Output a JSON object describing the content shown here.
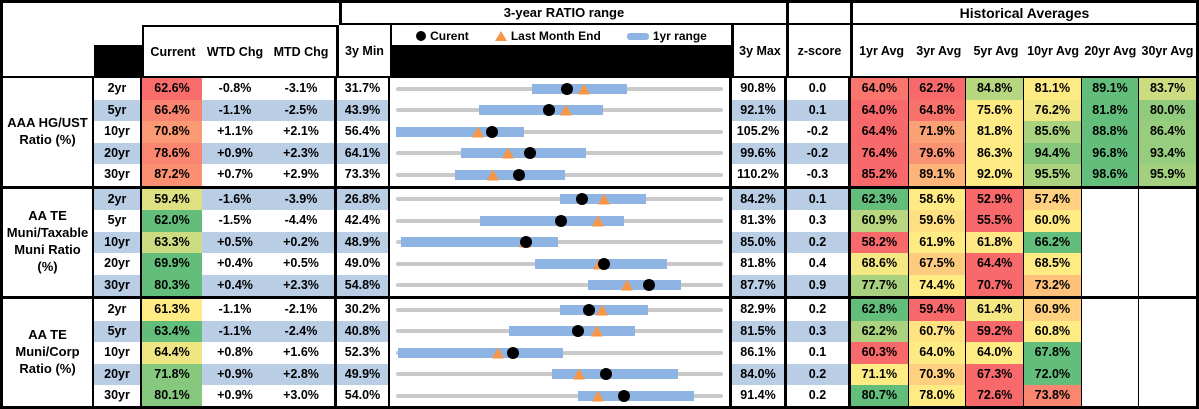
{
  "header": {
    "range_title": "3-year RATIO range",
    "hist_title": "Historical Averages",
    "col_current": "Current",
    "col_wtd": "WTD Chg",
    "col_mtd": "MTD Chg",
    "col_3ymin": "3y Min",
    "col_3ymax": "3y Max",
    "col_zscore": "z-score",
    "avg_cols": [
      "1yr Avg",
      "3yr Avg",
      "5yr Avg",
      "10yr Avg",
      "20yr Avg",
      "30yr Avg"
    ],
    "legend_current": "Curent",
    "legend_last_month": "Last Month End",
    "legend_range": "1yr range"
  },
  "colors": {
    "heat_min": "#F8696B",
    "heat_mid": "#FFEB84",
    "heat_max": "#63BE7B",
    "band_blue": "#B9CDE5",
    "track_gray": "#C9C9C9",
    "bar_blue": "#8EB4E3",
    "marker_orange": "#F79646",
    "marker_black": "#000000"
  },
  "chart_data": {
    "type": "table",
    "columns": [
      "Current",
      "WTD Chg",
      "MTD Chg",
      "3y Min",
      "3-year RATIO range",
      "3y Max",
      "z-score",
      "1yr Avg",
      "3yr Avg",
      "5yr Avg",
      "10yr Avg",
      "20yr Avg",
      "30yr Avg"
    ],
    "range_plot_legend": [
      "Curent",
      "Last Month End",
      "1yr range"
    ],
    "sections": [
      {
        "label_lines": [
          "AAA HG/UST",
          "Ratio (%)"
        ],
        "rows": [
          {
            "tenor": "2yr",
            "current": "62.6%",
            "wtd_chg": "-0.8%",
            "mtd_chg": "-3.1%",
            "min_3y": "31.7%",
            "max_3y": "90.8%",
            "z_score": "0.0",
            "avgs": [
              "64.0%",
              "62.2%",
              "84.8%",
              "81.1%",
              "89.1%",
              "83.7%"
            ],
            "range_plot": {
              "min": 31.7,
              "max": 90.8,
              "current": 62.6,
              "last_month_end": 65.7,
              "bar_1yr": [
                56.3,
                73.4
              ]
            }
          },
          {
            "tenor": "5yr",
            "current": "66.4%",
            "wtd_chg": "-1.1%",
            "mtd_chg": "-2.5%",
            "min_3y": "43.9%",
            "max_3y": "92.1%",
            "z_score": "0.1",
            "avgs": [
              "64.0%",
              "64.8%",
              "75.6%",
              "76.2%",
              "81.8%",
              "80.0%"
            ],
            "range_plot": {
              "min": 43.9,
              "max": 92.1,
              "current": 66.4,
              "last_month_end": 68.9,
              "bar_1yr": [
                56.1,
                74.4
              ]
            }
          },
          {
            "tenor": "10yr",
            "current": "70.8%",
            "wtd_chg": "+1.1%",
            "mtd_chg": "+2.1%",
            "min_3y": "56.4%",
            "max_3y": "105.2%",
            "z_score": "-0.2",
            "avgs": [
              "64.4%",
              "71.9%",
              "81.8%",
              "85.6%",
              "88.8%",
              "86.4%"
            ],
            "range_plot": {
              "min": 56.4,
              "max": 105.2,
              "current": 70.8,
              "last_month_end": 68.7,
              "bar_1yr": [
                56.4,
                75.5
              ]
            }
          },
          {
            "tenor": "20yr",
            "current": "78.6%",
            "wtd_chg": "+0.9%",
            "mtd_chg": "+2.3%",
            "min_3y": "64.1%",
            "max_3y": "99.6%",
            "z_score": "-0.2",
            "avgs": [
              "76.4%",
              "79.6%",
              "86.3%",
              "94.4%",
              "96.8%",
              "93.4%"
            ],
            "range_plot": {
              "min": 64.1,
              "max": 99.6,
              "current": 78.6,
              "last_month_end": 76.3,
              "bar_1yr": [
                71.2,
                84.7
              ]
            }
          },
          {
            "tenor": "30yr",
            "current": "87.2%",
            "wtd_chg": "+0.7%",
            "mtd_chg": "+2.9%",
            "min_3y": "73.3%",
            "max_3y": "110.2%",
            "z_score": "-0.3",
            "avgs": [
              "85.2%",
              "89.1%",
              "92.0%",
              "95.5%",
              "98.6%",
              "95.9%"
            ],
            "range_plot": {
              "min": 73.3,
              "max": 110.2,
              "current": 87.2,
              "last_month_end": 84.3,
              "bar_1yr": [
                80.0,
                92.4
              ]
            }
          }
        ]
      },
      {
        "label_lines": [
          "AA TE",
          "Muni/Taxable",
          "Muni Ratio",
          "(%)"
        ],
        "rows": [
          {
            "tenor": "2yr",
            "current": "59.4%",
            "wtd_chg": "-1.6%",
            "mtd_chg": "-3.9%",
            "min_3y": "26.8%",
            "max_3y": "84.2%",
            "z_score": "0.1",
            "avgs": [
              "62.3%",
              "58.6%",
              "52.9%",
              "57.4%",
              null,
              null
            ],
            "range_plot": {
              "min": 26.8,
              "max": 84.2,
              "current": 59.4,
              "last_month_end": 63.3,
              "bar_1yr": [
                55.5,
                70.6
              ]
            }
          },
          {
            "tenor": "5yr",
            "current": "62.0%",
            "wtd_chg": "-1.5%",
            "mtd_chg": "-4.4%",
            "min_3y": "42.4%",
            "max_3y": "81.3%",
            "z_score": "0.3",
            "avgs": [
              "60.9%",
              "59.6%",
              "55.5%",
              "60.0%",
              null,
              null
            ],
            "range_plot": {
              "min": 42.4,
              "max": 81.3,
              "current": 62.0,
              "last_month_end": 66.4,
              "bar_1yr": [
                52.4,
                69.5
              ]
            }
          },
          {
            "tenor": "10yr",
            "current": "63.3%",
            "wtd_chg": "+0.5%",
            "mtd_chg": "+0.2%",
            "min_3y": "48.9%",
            "max_3y": "85.0%",
            "z_score": "0.2",
            "avgs": [
              "58.2%",
              "61.9%",
              "61.8%",
              "66.2%",
              null,
              null
            ],
            "range_plot": {
              "min": 48.9,
              "max": 85.0,
              "current": 63.3,
              "last_month_end": 63.1,
              "bar_1yr": [
                49.4,
                66.8
              ]
            }
          },
          {
            "tenor": "20yr",
            "current": "69.9%",
            "wtd_chg": "+0.4%",
            "mtd_chg": "+0.5%",
            "min_3y": "49.0%",
            "max_3y": "81.8%",
            "z_score": "0.4",
            "avgs": [
              "68.6%",
              "67.5%",
              "64.4%",
              "68.5%",
              null,
              null
            ],
            "range_plot": {
              "min": 49.0,
              "max": 81.8,
              "current": 69.9,
              "last_month_end": 69.4,
              "bar_1yr": [
                62.9,
                76.2
              ]
            }
          },
          {
            "tenor": "30yr",
            "current": "80.3%",
            "wtd_chg": "+0.4%",
            "mtd_chg": "+2.3%",
            "min_3y": "54.8%",
            "max_3y": "87.7%",
            "z_score": "0.9",
            "avgs": [
              "77.7%",
              "74.4%",
              "70.7%",
              "73.2%",
              null,
              null
            ],
            "range_plot": {
              "min": 54.8,
              "max": 87.7,
              "current": 80.3,
              "last_month_end": 78.0,
              "bar_1yr": [
                74.1,
                83.5
              ]
            }
          }
        ]
      },
      {
        "label_lines": [
          "AA TE",
          "Muni/Corp",
          "Ratio (%)"
        ],
        "rows": [
          {
            "tenor": "2yr",
            "current": "61.3%",
            "wtd_chg": "-1.1%",
            "mtd_chg": "-2.1%",
            "min_3y": "30.2%",
            "max_3y": "82.9%",
            "z_score": "0.2",
            "avgs": [
              "62.8%",
              "59.4%",
              "61.4%",
              "60.9%",
              null,
              null
            ],
            "range_plot": {
              "min": 30.2,
              "max": 82.9,
              "current": 61.3,
              "last_month_end": 63.4,
              "bar_1yr": [
                56.6,
                70.8
              ]
            }
          },
          {
            "tenor": "5yr",
            "current": "63.4%",
            "wtd_chg": "-1.1%",
            "mtd_chg": "-2.4%",
            "min_3y": "40.8%",
            "max_3y": "81.5%",
            "z_score": "0.3",
            "avgs": [
              "62.2%",
              "60.7%",
              "59.2%",
              "60.8%",
              null,
              null
            ],
            "range_plot": {
              "min": 40.8,
              "max": 81.5,
              "current": 63.4,
              "last_month_end": 65.8,
              "bar_1yr": [
                54.9,
                70.5
              ]
            }
          },
          {
            "tenor": "10yr",
            "current": "64.4%",
            "wtd_chg": "+0.8%",
            "mtd_chg": "+1.6%",
            "min_3y": "52.3%",
            "max_3y": "86.1%",
            "z_score": "0.1",
            "avgs": [
              "60.3%",
              "64.0%",
              "64.0%",
              "67.8%",
              null,
              null
            ],
            "range_plot": {
              "min": 52.3,
              "max": 86.1,
              "current": 64.4,
              "last_month_end": 62.8,
              "bar_1yr": [
                52.5,
                69.6
              ]
            }
          },
          {
            "tenor": "20yr",
            "current": "71.8%",
            "wtd_chg": "+0.9%",
            "mtd_chg": "+2.8%",
            "min_3y": "49.9%",
            "max_3y": "84.0%",
            "z_score": "0.2",
            "avgs": [
              "71.1%",
              "70.3%",
              "67.3%",
              "72.0%",
              null,
              null
            ],
            "range_plot": {
              "min": 49.9,
              "max": 84.0,
              "current": 71.8,
              "last_month_end": 69.0,
              "bar_1yr": [
                66.2,
                79.3
              ]
            }
          },
          {
            "tenor": "30yr",
            "current": "80.1%",
            "wtd_chg": "+0.9%",
            "mtd_chg": "+3.0%",
            "min_3y": "54.0%",
            "max_3y": "91.4%",
            "z_score": "0.2",
            "avgs": [
              "80.7%",
              "78.0%",
              "72.6%",
              "73.8%",
              null,
              null
            ],
            "range_plot": {
              "min": 54.0,
              "max": 91.4,
              "current": 80.1,
              "last_month_end": 77.1,
              "bar_1yr": [
                74.8,
                88.1
              ]
            }
          }
        ]
      }
    ]
  }
}
